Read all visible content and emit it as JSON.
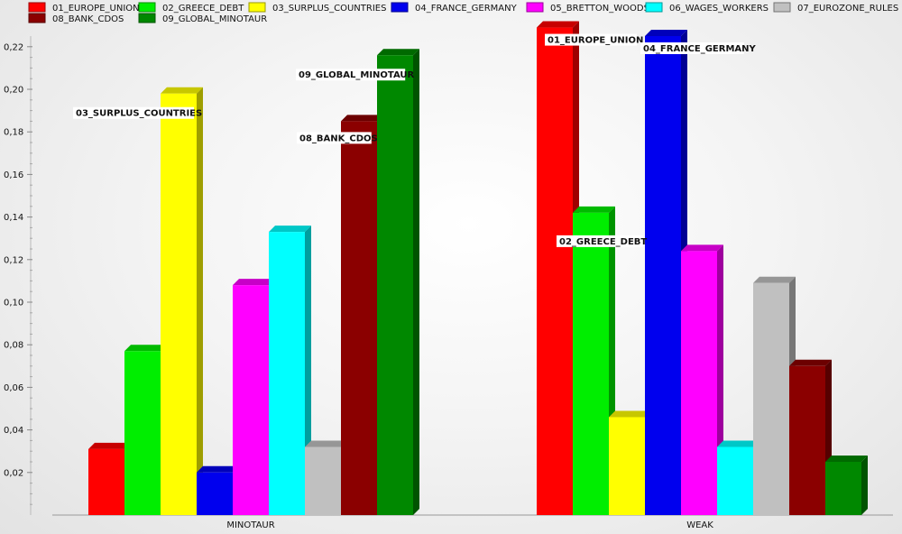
{
  "chart_data": {
    "type": "bar",
    "title": "",
    "xlabel": "",
    "ylabel": "",
    "ylim": [
      0,
      0.24
    ],
    "yticks": [
      "0,02",
      "0,04",
      "0,06",
      "0,08",
      "0,10",
      "0,12",
      "0,14",
      "0,16",
      "0,18",
      "0,20",
      "0,22"
    ],
    "yticks_values": [
      0.02,
      0.04,
      0.06,
      0.08,
      0.1,
      0.12,
      0.14,
      0.16,
      0.18,
      0.2,
      0.22
    ],
    "categories": [
      "MINOTAUR",
      "WEAK"
    ],
    "legend_position": "top",
    "bar_style": "3d",
    "series": [
      {
        "name": "01_EUROPE_UNION",
        "color": "#ff0000",
        "values": [
          0.031,
          0.229
        ]
      },
      {
        "name": "02_GREECE_DEBT",
        "color": "#00ee00",
        "values": [
          0.077,
          0.142
        ]
      },
      {
        "name": "03_SURPLUS_COUNTRIES",
        "color": "#ffff00",
        "values": [
          0.198,
          0.046
        ]
      },
      {
        "name": "04_FRANCE_GERMANY",
        "color": "#0000ee",
        "values": [
          0.02,
          0.225
        ]
      },
      {
        "name": "05_BRETTON_WOODS",
        "color": "#ff00ff",
        "values": [
          0.108,
          0.124
        ]
      },
      {
        "name": "06_WAGES_WORKERS",
        "color": "#00ffff",
        "values": [
          0.133,
          0.032
        ]
      },
      {
        "name": "07_EUROZONE_RULES",
        "color": "#c0c0c0",
        "values": [
          0.032,
          0.109
        ]
      },
      {
        "name": "08_BANK_CDOS",
        "color": "#8b0000",
        "values": [
          0.185,
          0.07
        ]
      },
      {
        "name": "09_GLOBAL_MINOTAUR",
        "color": "#008800",
        "values": [
          0.216,
          0.025
        ]
      }
    ],
    "annotations": [
      {
        "text": "03_SURPLUS_COUNTRIES",
        "series": 2,
        "category": 0
      },
      {
        "text": "09_GLOBAL_MINOTAUR",
        "series": 8,
        "category": 0
      },
      {
        "text": "08_BANK_CDOS",
        "series": 7,
        "category": 0
      },
      {
        "text": "01_EUROPE_UNION",
        "series": 0,
        "category": 1
      },
      {
        "text": "04_FRANCE_GERMANY",
        "series": 3,
        "category": 1
      },
      {
        "text": "02_GREECE_DEBT",
        "series": 1,
        "category": 1
      }
    ]
  }
}
